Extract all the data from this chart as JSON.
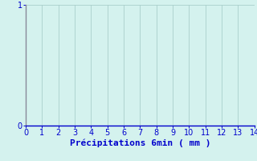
{
  "title": "",
  "xlabel": "Précipitations 6min ( mm )",
  "ylabel": "",
  "xlim": [
    0,
    14
  ],
  "ylim": [
    0,
    1
  ],
  "xticks": [
    0,
    1,
    2,
    3,
    4,
    5,
    6,
    7,
    8,
    9,
    10,
    11,
    12,
    13,
    14
  ],
  "yticks": [
    0,
    1
  ],
  "background_color": "#d4f2ee",
  "grid_color": "#aacfcb",
  "text_color": "#0000cc",
  "left_spine_color": "#888899",
  "bottom_spine_color": "#0000cc",
  "font_size": 7,
  "xlabel_fontsize": 8
}
